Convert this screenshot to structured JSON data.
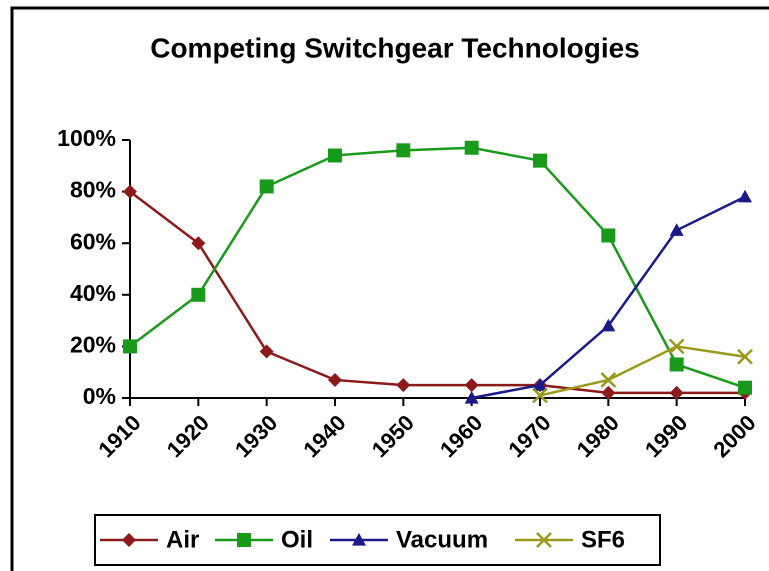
{
  "chart_data": {
    "type": "line",
    "title": "Competing Switchgear Technologies",
    "x": [
      1910,
      1920,
      1930,
      1940,
      1950,
      1960,
      1970,
      1980,
      1990,
      2000
    ],
    "xlim": [
      1910,
      2000
    ],
    "xticks": [
      1910,
      1920,
      1930,
      1940,
      1950,
      1960,
      1970,
      1980,
      1990,
      2000
    ],
    "ylim": [
      0,
      100
    ],
    "yticks": [
      {
        "value": 0,
        "label": "0%"
      },
      {
        "value": 20,
        "label": "20%"
      },
      {
        "value": 40,
        "label": "40%"
      },
      {
        "value": 60,
        "label": "60%"
      },
      {
        "value": 80,
        "label": "80%"
      },
      {
        "value": 100,
        "label": "100%"
      }
    ],
    "grid": false,
    "legend": "bottom",
    "series": [
      {
        "name": "Air",
        "color": "#8b1a1a",
        "marker": "diamond",
        "values": [
          80,
          60,
          18,
          7,
          5,
          5,
          5,
          2,
          2,
          2
        ]
      },
      {
        "name": "Oil",
        "color": "#1a9a1a",
        "marker": "square",
        "values": [
          20,
          40,
          82,
          94,
          96,
          97,
          92,
          63,
          13,
          4
        ]
      },
      {
        "name": "Vacuum",
        "color": "#1a1a8b",
        "marker": "triangle",
        "values": [
          null,
          null,
          null,
          null,
          null,
          0,
          5,
          28,
          65,
          78
        ]
      },
      {
        "name": "SF6",
        "color": "#9a9a1a",
        "marker": "x",
        "values": [
          null,
          null,
          null,
          null,
          null,
          null,
          1,
          7,
          20,
          16
        ]
      }
    ]
  }
}
